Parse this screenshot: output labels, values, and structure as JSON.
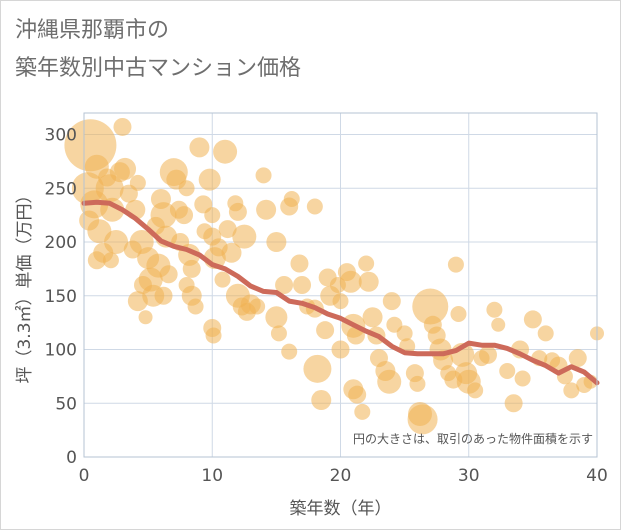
{
  "title_line1": "沖縄県那覇市の",
  "title_line2": "築年数別中古マンション価格",
  "chart_data": {
    "type": "scatter",
    "xlabel": "築年数（年）",
    "ylabel": "坪（3.3㎡）単価（万円）",
    "xlim": [
      0,
      40
    ],
    "ylim": [
      0,
      320
    ],
    "x_ticks": [
      0,
      10,
      20,
      30,
      40
    ],
    "y_ticks": [
      0,
      50,
      100,
      150,
      200,
      250,
      300
    ],
    "grid": true,
    "note": "円の大きさは、取引のあった物件面積を示す",
    "colors": {
      "bubble": "#f0b254",
      "trend": "#cd6a5a",
      "grid": "#cfd9e6",
      "plot_border": "#b6c3d3",
      "axis_text": "#555555",
      "title": "#6e6e6e"
    },
    "bubbles": [
      [
        0.5,
        290,
        26
      ],
      [
        0.3,
        250,
        16
      ],
      [
        0.8,
        235,
        14
      ],
      [
        1,
        270,
        12
      ],
      [
        1.2,
        210,
        12
      ],
      [
        1.5,
        190,
        10
      ],
      [
        0.4,
        220,
        10
      ],
      [
        2,
        250,
        14
      ],
      [
        2.2,
        230,
        12
      ],
      [
        2.5,
        200,
        12
      ],
      [
        2.8,
        265,
        10
      ],
      [
        3,
        307,
        9
      ],
      [
        3.2,
        268,
        11
      ],
      [
        3.5,
        245,
        9
      ],
      [
        1.8,
        260,
        9
      ],
      [
        1,
        183,
        9
      ],
      [
        2.1,
        183,
        8
      ],
      [
        4,
        230,
        10
      ],
      [
        4.2,
        255,
        8
      ],
      [
        4.5,
        200,
        12
      ],
      [
        3.8,
        193,
        9
      ],
      [
        5,
        185,
        11
      ],
      [
        5.2,
        165,
        12
      ],
      [
        4.6,
        160,
        9
      ],
      [
        4.2,
        145,
        10
      ],
      [
        5.4,
        150,
        11
      ],
      [
        4.8,
        130,
        7
      ],
      [
        5.6,
        215,
        9
      ],
      [
        6,
        240,
        10
      ],
      [
        6.2,
        225,
        13
      ],
      [
        6.4,
        205,
        11
      ],
      [
        5.8,
        178,
        12
      ],
      [
        6.6,
        170,
        9
      ],
      [
        6.2,
        150,
        9
      ],
      [
        7,
        265,
        14
      ],
      [
        7.2,
        258,
        10
      ],
      [
        7.4,
        230,
        9
      ],
      [
        7.8,
        225,
        9
      ],
      [
        8,
        250,
        8
      ],
      [
        7.5,
        200,
        9
      ],
      [
        8.2,
        188,
        11
      ],
      [
        8.4,
        175,
        9
      ],
      [
        8,
        160,
        8
      ],
      [
        8.4,
        150,
        10
      ],
      [
        8.7,
        140,
        8
      ],
      [
        9,
        288,
        10
      ],
      [
        9.3,
        235,
        9
      ],
      [
        9.4,
        210,
        8
      ],
      [
        9.8,
        258,
        11
      ],
      [
        10,
        225,
        8
      ],
      [
        10,
        205,
        9
      ],
      [
        10.2,
        185,
        11
      ],
      [
        10.5,
        195,
        9
      ],
      [
        10.8,
        165,
        8
      ],
      [
        10,
        120,
        9
      ],
      [
        10.1,
        113,
        8
      ],
      [
        11,
        284,
        12
      ],
      [
        11.2,
        212,
        9
      ],
      [
        11.5,
        190,
        10
      ],
      [
        11.8,
        236,
        8
      ],
      [
        12,
        228,
        9
      ],
      [
        12.5,
        205,
        12
      ],
      [
        12,
        150,
        12
      ],
      [
        12.3,
        140,
        9
      ],
      [
        12.7,
        135,
        9
      ],
      [
        13,
        142,
        10
      ],
      [
        13.5,
        140,
        8
      ],
      [
        14,
        262,
        8
      ],
      [
        14.2,
        230,
        10
      ],
      [
        15,
        200,
        10
      ],
      [
        15,
        130,
        11
      ],
      [
        15.2,
        115,
        8
      ],
      [
        15.6,
        160,
        9
      ],
      [
        16,
        98,
        8
      ],
      [
        16.2,
        240,
        8
      ],
      [
        16,
        233,
        9
      ],
      [
        16.8,
        180,
        9
      ],
      [
        17,
        160,
        9
      ],
      [
        17.4,
        140,
        8
      ],
      [
        18,
        233,
        8
      ],
      [
        18,
        138,
        9
      ],
      [
        18.2,
        82,
        14
      ],
      [
        18.5,
        53,
        10
      ],
      [
        18.8,
        118,
        9
      ],
      [
        19,
        167,
        9
      ],
      [
        19.2,
        150,
        10
      ],
      [
        19.8,
        160,
        8
      ],
      [
        20,
        145,
        8
      ],
      [
        20,
        100,
        9
      ],
      [
        20.5,
        172,
        9
      ],
      [
        20.8,
        163,
        11
      ],
      [
        21,
        122,
        12
      ],
      [
        21.2,
        113,
        9
      ],
      [
        21,
        63,
        10
      ],
      [
        21.3,
        58,
        9
      ],
      [
        21.7,
        42,
        8
      ],
      [
        22,
        180,
        8
      ],
      [
        22.2,
        163,
        10
      ],
      [
        22.5,
        130,
        10
      ],
      [
        22.8,
        113,
        9
      ],
      [
        23,
        92,
        9
      ],
      [
        23.5,
        80,
        10
      ],
      [
        23.8,
        70,
        12
      ],
      [
        24,
        145,
        9
      ],
      [
        24.2,
        123,
        8
      ],
      [
        25,
        115,
        8
      ],
      [
        25.2,
        103,
        8
      ],
      [
        25.8,
        78,
        9
      ],
      [
        26,
        68,
        8
      ],
      [
        26.2,
        40,
        12
      ],
      [
        26.4,
        35,
        15
      ],
      [
        27,
        140,
        18
      ],
      [
        27.2,
        123,
        9
      ],
      [
        27.5,
        113,
        9
      ],
      [
        27.8,
        100,
        11
      ],
      [
        28,
        90,
        10
      ],
      [
        28.4,
        78,
        8
      ],
      [
        28.8,
        72,
        9
      ],
      [
        29,
        179,
        8
      ],
      [
        29.2,
        133,
        8
      ],
      [
        29.5,
        95,
        12
      ],
      [
        29.8,
        78,
        11
      ],
      [
        30,
        70,
        12
      ],
      [
        30.5,
        62,
        8
      ],
      [
        31,
        92,
        8
      ],
      [
        31.5,
        95,
        9
      ],
      [
        32,
        137,
        8
      ],
      [
        32.3,
        123,
        7
      ],
      [
        33,
        80,
        8
      ],
      [
        33.5,
        50,
        9
      ],
      [
        34,
        100,
        9
      ],
      [
        34.2,
        73,
        8
      ],
      [
        35,
        128,
        9
      ],
      [
        35.5,
        92,
        8
      ],
      [
        36,
        115,
        8
      ],
      [
        36.5,
        90,
        8
      ],
      [
        37,
        85,
        9
      ],
      [
        37.5,
        75,
        8
      ],
      [
        38,
        62,
        8
      ],
      [
        38.5,
        92,
        9
      ],
      [
        39,
        67,
        8
      ],
      [
        39.5,
        70,
        7
      ],
      [
        40,
        115,
        7
      ]
    ],
    "trend": [
      [
        0,
        236
      ],
      [
        1,
        237
      ],
      [
        2,
        236
      ],
      [
        3,
        230
      ],
      [
        4,
        222
      ],
      [
        5,
        212
      ],
      [
        6,
        201
      ],
      [
        7,
        196
      ],
      [
        8,
        193
      ],
      [
        9,
        188
      ],
      [
        10,
        179
      ],
      [
        11,
        175
      ],
      [
        12,
        168
      ],
      [
        13,
        159
      ],
      [
        14,
        154
      ],
      [
        15,
        153
      ],
      [
        16,
        145
      ],
      [
        17,
        143
      ],
      [
        18,
        139
      ],
      [
        19,
        133
      ],
      [
        20,
        129
      ],
      [
        21,
        123
      ],
      [
        22,
        117
      ],
      [
        23,
        112
      ],
      [
        24,
        103
      ],
      [
        25,
        97
      ],
      [
        26,
        96
      ],
      [
        27,
        96
      ],
      [
        28,
        96
      ],
      [
        29,
        99
      ],
      [
        30,
        106
      ],
      [
        31,
        104
      ],
      [
        32,
        104
      ],
      [
        33,
        101
      ],
      [
        34,
        96
      ],
      [
        35,
        90
      ],
      [
        36,
        85
      ],
      [
        37,
        78
      ],
      [
        38,
        84
      ],
      [
        39,
        79
      ],
      [
        40,
        69
      ]
    ]
  }
}
